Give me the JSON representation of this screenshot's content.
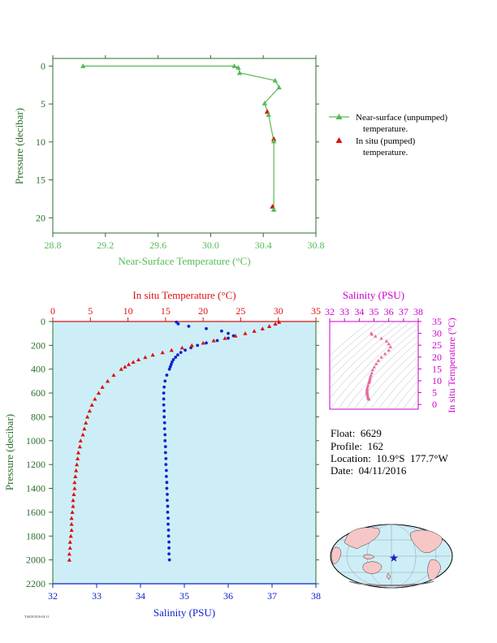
{
  "colors": {
    "near_surface": "#55bb55",
    "temperature": "#dd1111",
    "salinity": "#1122cc",
    "ts_axis": "#cc00cc",
    "panel_bg": "#cdeef7",
    "axis_green": "#2a6f2a"
  },
  "float_info": {
    "float": "Float:  6629",
    "profile": "Profile:  162",
    "location": "Location:  10.9°S  177.7°W",
    "date": "Date:  04/11/2016"
  },
  "footer_text": "Y6629/2016-04-11",
  "chart_data": [
    {
      "type": "line",
      "name": "near-surface",
      "xlabel": "Near-Surface Temperature (°C)",
      "ylabel": "Pressure (decibar)",
      "xlim": [
        28.8,
        30.8
      ],
      "ylim": [
        22,
        -1
      ],
      "xticks": [
        "28.8",
        "29.2",
        "29.6",
        "30.0",
        "30.4",
        "30.8"
      ],
      "yticks": [
        "0",
        "5",
        "10",
        "15",
        "20"
      ],
      "series": [
        {
          "name": "Near-surface (unpumped) temperature.",
          "x": [
            29.03,
            30.18,
            30.21,
            30.22,
            30.49,
            30.52,
            30.41,
            30.44,
            30.48,
            30.48,
            30.48
          ],
          "y": [
            0.0,
            0.0,
            0.2,
            0.9,
            1.9,
            2.8,
            4.9,
            6.4,
            9.9,
            18.9,
            18.9
          ]
        },
        {
          "name": "In situ (pumped) temperature.",
          "x": [
            30.43,
            30.48,
            30.47
          ],
          "y": [
            6.0,
            9.6,
            18.5
          ]
        }
      ],
      "legend": [
        "Near-surface (unpumped)",
        "temperature.",
        "In situ (pumped)",
        "temperature."
      ],
      "legend_position": "right"
    },
    {
      "type": "scatter",
      "name": "profile",
      "ylabel": "Pressure (decibar)",
      "top_xlabel": "In situ Temperature (°C)",
      "bottom_xlabel": "Salinity (PSU)",
      "temp_lim": [
        0,
        35
      ],
      "sal_lim": [
        32,
        38
      ],
      "ylim": [
        2200,
        0
      ],
      "temp_ticks": [
        "0",
        "5",
        "10",
        "15",
        "20",
        "25",
        "30",
        "35"
      ],
      "sal_ticks": [
        "32",
        "33",
        "34",
        "35",
        "36",
        "37",
        "38"
      ],
      "yticks": [
        "0",
        "200",
        "400",
        "600",
        "800",
        "1000",
        "1200",
        "1400",
        "1600",
        "1800",
        "2000",
        "2200"
      ],
      "temperature": {
        "p": [
          5,
          20,
          40,
          60,
          80,
          100,
          120,
          140,
          160,
          180,
          200,
          220,
          240,
          260,
          280,
          300,
          320,
          340,
          360,
          380,
          400,
          450,
          500,
          550,
          600,
          650,
          700,
          750,
          800,
          850,
          900,
          950,
          1000,
          1050,
          1100,
          1150,
          1200,
          1250,
          1300,
          1350,
          1400,
          1450,
          1500,
          1550,
          1600,
          1650,
          1700,
          1750,
          1800,
          1850,
          1900,
          1950,
          2000
        ],
        "t": [
          30.1,
          29.6,
          28.8,
          27.9,
          26.8,
          25.6,
          24.3,
          22.9,
          21.4,
          20.0,
          18.5,
          17.2,
          15.8,
          14.6,
          13.3,
          12.3,
          11.4,
          10.7,
          10.1,
          9.6,
          9.1,
          8.1,
          7.3,
          6.6,
          6.1,
          5.6,
          5.2,
          4.9,
          4.6,
          4.4,
          4.2,
          4.0,
          3.7,
          3.6,
          3.4,
          3.3,
          3.2,
          3.1,
          3.0,
          2.9,
          2.9,
          2.8,
          2.7,
          2.7,
          2.6,
          2.5,
          2.5,
          2.5,
          2.4,
          2.3,
          2.3,
          2.2,
          2.2
        ]
      },
      "salinity": {
        "p": [
          5,
          20,
          40,
          60,
          80,
          100,
          120,
          140,
          160,
          180,
          200,
          220,
          240,
          260,
          280,
          300,
          320,
          340,
          360,
          380,
          400,
          450,
          500,
          550,
          600,
          650,
          700,
          750,
          800,
          850,
          900,
          950,
          1000,
          1050,
          1100,
          1150,
          1200,
          1250,
          1300,
          1350,
          1400,
          1450,
          1500,
          1550,
          1600,
          1650,
          1700,
          1750,
          1800,
          1850,
          1900,
          1950,
          2000
        ],
        "s": [
          34.82,
          34.86,
          35.1,
          35.5,
          35.85,
          36.0,
          36.12,
          36.0,
          35.75,
          35.5,
          35.3,
          35.15,
          35.02,
          34.92,
          34.85,
          34.8,
          34.75,
          34.72,
          34.7,
          34.68,
          34.66,
          34.6,
          34.56,
          34.54,
          34.53,
          34.53,
          34.53,
          34.54,
          34.54,
          34.55,
          34.55,
          34.56,
          34.56,
          34.57,
          34.57,
          34.58,
          34.58,
          34.59,
          34.59,
          34.6,
          34.6,
          34.61,
          34.61,
          34.62,
          34.62,
          34.63,
          34.63,
          34.64,
          34.64,
          34.65,
          34.65,
          34.65,
          34.66
        ]
      }
    },
    {
      "type": "line",
      "name": "ts-diagram",
      "xlabel": "Salinity (PSU)",
      "ylabel": "In situ Temperature (°C)",
      "xlim": [
        32,
        38
      ],
      "ylim": [
        -2,
        35
      ],
      "xticks": [
        "32",
        "33",
        "34",
        "35",
        "36",
        "37",
        "38"
      ],
      "yticks": [
        "0",
        "5",
        "10",
        "15",
        "20",
        "25",
        "30",
        "35"
      ],
      "ts_s": [
        34.82,
        34.86,
        35.1,
        35.5,
        35.85,
        36.0,
        36.12,
        36.0,
        35.75,
        35.5,
        35.3,
        35.15,
        35.02,
        34.92,
        34.85,
        34.8,
        34.75,
        34.72,
        34.7,
        34.68,
        34.66,
        34.6,
        34.56,
        34.54,
        34.53,
        34.53,
        34.53,
        34.54,
        34.55,
        34.56,
        34.58,
        34.6,
        34.62,
        34.64,
        34.66
      ],
      "ts_t": [
        30.1,
        29.6,
        28.8,
        27.9,
        26.8,
        25.6,
        24.3,
        22.9,
        21.4,
        20.0,
        18.5,
        17.2,
        15.8,
        14.6,
        13.3,
        12.3,
        11.4,
        10.7,
        10.1,
        9.6,
        9.1,
        8.1,
        7.3,
        6.6,
        6.1,
        5.6,
        5.2,
        4.9,
        4.4,
        4.0,
        3.4,
        3.0,
        2.7,
        2.5,
        2.2
      ]
    }
  ],
  "map": {
    "position_marker": "star"
  }
}
